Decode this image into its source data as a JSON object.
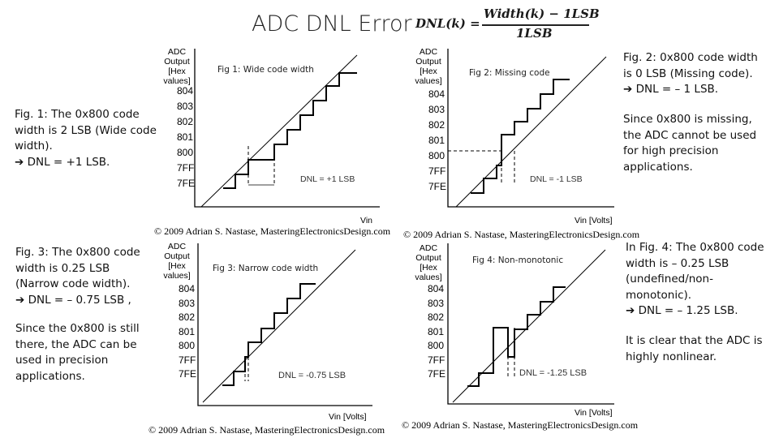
{
  "title": "ADC DNL Error",
  "formula": {
    "lhs": "DNL(k) =",
    "numerator": "Width(k) − 1LSB",
    "denominator": "1LSB"
  },
  "y_axis_label": "ADC\nOutput\n[Hex\nvalues]",
  "codes": [
    "804",
    "803",
    "802",
    "801",
    "800",
    "7FF",
    "7FE"
  ],
  "copyright": "© 2009 Adrian S. Nastase, MasteringElectronicsDesign.com",
  "x_label_vin": "Vin",
  "x_label_volts": "Vin [Volts]",
  "figures": {
    "fig1": {
      "caption": "Fig 1: Wide code width",
      "annotation": "DNL = +1 LSB",
      "description": "Fig. 1: The 0x800 code width is 2 LSB (Wide code width).\n➔ DNL = +1 LSB."
    },
    "fig2": {
      "caption": "Fig 2: Missing code",
      "annotation": "DNL = -1 LSB",
      "description": "Fig. 2: 0x800 code width is 0 LSB (Missing code).\n➔ DNL = – 1 LSB.",
      "note": "Since 0x800 is missing, the ADC cannot be used for high precision applications."
    },
    "fig3": {
      "caption": "Fig 3: Narrow code width",
      "annotation": "DNL = -0.75 LSB",
      "description": "Fig. 3: The 0x800 code width is 0.25 LSB (Narrow code width).\n➔ DNL = – 0.75 LSB ,",
      "note": "Since the 0x800 is still there, the ADC can be used in precision applications."
    },
    "fig4": {
      "caption": "Fig 4: Non-monotonic",
      "annotation": "DNL = -1.25 LSB",
      "description": "In Fig. 4: The 0x800 code width is – 0.25 LSB (undefined/non-monotonic).\n➔ DNL = – 1.25 LSB.",
      "note": "It is clear that the ADC is highly nonlinear."
    }
  }
}
